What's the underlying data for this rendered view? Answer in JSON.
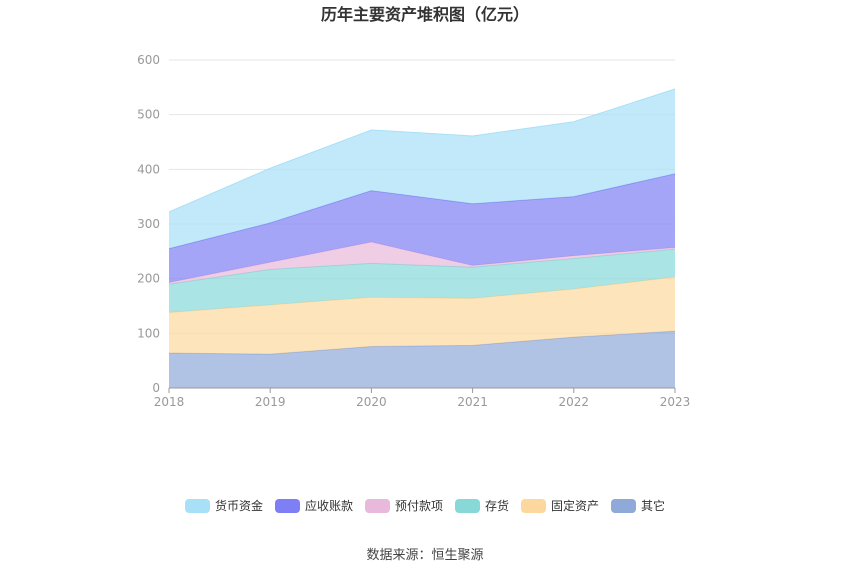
{
  "source": "数据来源：恒生聚源",
  "chart_data": {
    "type": "area",
    "stacked": true,
    "title": "历年主要资产堆积图（亿元）",
    "categories": [
      "2018",
      "2019",
      "2020",
      "2021",
      "2022",
      "2023"
    ],
    "ylim": [
      0,
      600
    ],
    "yticks": [
      0,
      100,
      200,
      300,
      400,
      500,
      600
    ],
    "grid": true,
    "legend_position": "bottom",
    "series": [
      {
        "name": "其它",
        "color": "#8fa9d8",
        "values": [
          64,
          62,
          76,
          78,
          93,
          104
        ]
      },
      {
        "name": "固定资产",
        "color": "#fdd89e",
        "values": [
          74,
          90,
          90,
          86,
          88,
          99
        ]
      },
      {
        "name": "存货",
        "color": "#88d8d8",
        "values": [
          52,
          65,
          62,
          57,
          56,
          51
        ]
      },
      {
        "name": "预付款项",
        "color": "#e8b9da",
        "values": [
          3,
          13,
          39,
          3,
          5,
          3
        ]
      },
      {
        "name": "应收账款",
        "color": "#7f7ff5",
        "values": [
          62,
          72,
          94,
          113,
          108,
          135
        ]
      },
      {
        "name": "货币资金",
        "color": "#a8e0f8",
        "values": [
          67,
          100,
          111,
          124,
          137,
          155
        ]
      }
    ],
    "legend_order": [
      "货币资金",
      "应收账款",
      "预付款项",
      "存货",
      "固定资产",
      "其它"
    ]
  }
}
